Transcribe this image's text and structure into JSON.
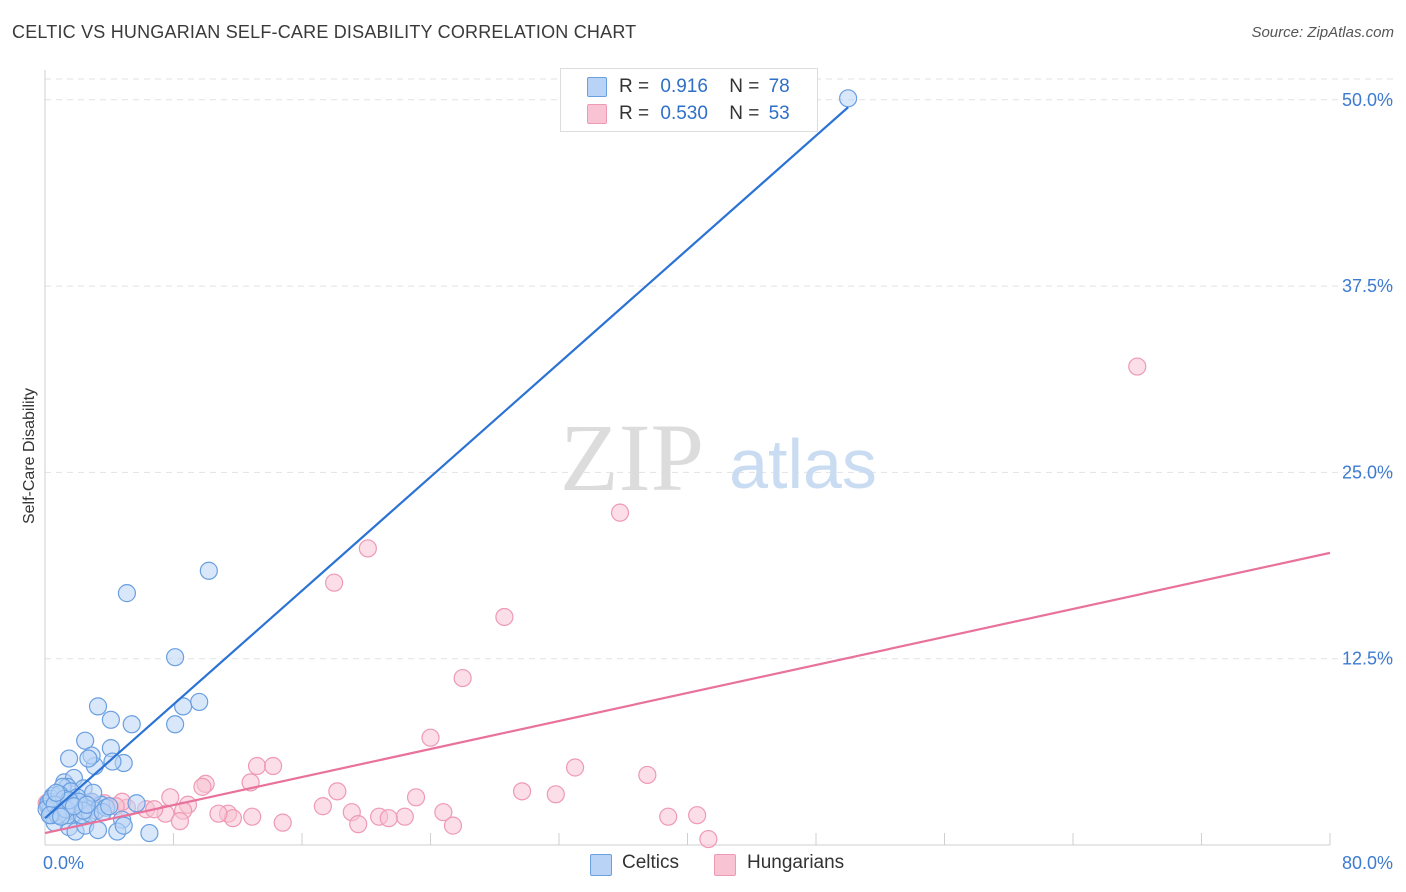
{
  "title": "CELTIC VS HUNGARIAN SELF-CARE DISABILITY CORRELATION CHART",
  "source": "Source: ZipAtlas.com",
  "watermark": {
    "zip": "ZIP",
    "atlas": "atlas"
  },
  "legend": {
    "rows": [
      {
        "r_label": "R =",
        "r_value": "0.916",
        "n_label": "N =",
        "n_value": "78"
      },
      {
        "r_label": "R =",
        "r_value": "0.530",
        "n_label": "N =",
        "n_value": "53"
      }
    ]
  },
  "bottom_legend": {
    "celtics": "Celtics",
    "hungarians": "Hungarians"
  },
  "colors": {
    "celtics_fill": "#b8d3f5",
    "celtics_stroke": "#6a9fe0",
    "celtics_line": "#2a72d4",
    "hungarians_fill": "#f8c3d3",
    "hungarians_stroke": "#ee9ab5",
    "hungarians_line": "#e8729c",
    "tick_label": "#3d7bd0",
    "grid": "#e2e2e2"
  },
  "chart_data": {
    "type": "scatter",
    "title": "CELTIC VS HUNGARIAN SELF-CARE DISABILITY CORRELATION CHART",
    "xlabel": "",
    "ylabel": "Self-Care Disability",
    "xlim": [
      0,
      80
    ],
    "ylim": [
      0,
      52
    ],
    "x_tick_labels": [
      "0.0%",
      "80.0%"
    ],
    "y_ticks": [
      12.5,
      25.0,
      37.5,
      50.0
    ],
    "y_tick_labels": [
      "12.5%",
      "25.0%",
      "37.5%",
      "50.0%"
    ],
    "grid": "horizontal dashed",
    "legend_position": "top-center",
    "series": [
      {
        "name": "Celtics",
        "R": 0.916,
        "N": 78,
        "trend": {
          "x": [
            0,
            50
          ],
          "y": [
            1.8,
            49.5
          ]
        },
        "points": [
          [
            50,
            50.1
          ],
          [
            10.2,
            18.4
          ],
          [
            5.1,
            16.9
          ],
          [
            8.1,
            12.6
          ],
          [
            8.1,
            8.1
          ],
          [
            9.6,
            9.6
          ],
          [
            8.6,
            9.3
          ],
          [
            3.3,
            9.3
          ],
          [
            5.4,
            8.1
          ],
          [
            4.1,
            8.4
          ],
          [
            4.1,
            6.5
          ],
          [
            2.5,
            7.0
          ],
          [
            1.5,
            5.8
          ],
          [
            3.1,
            5.3
          ],
          [
            2.9,
            6.0
          ],
          [
            2.7,
            5.8
          ],
          [
            4.9,
            5.5
          ],
          [
            4.2,
            5.6
          ],
          [
            1.2,
            4.2
          ],
          [
            1.8,
            4.5
          ],
          [
            1.4,
            3.9
          ],
          [
            2.4,
            3.8
          ],
          [
            1.1,
            3.9
          ],
          [
            0.9,
            3.0
          ],
          [
            1.6,
            3.6
          ],
          [
            0.5,
            3.3
          ],
          [
            0.3,
            2.9
          ],
          [
            0.2,
            2.6
          ],
          [
            0.3,
            2.3
          ],
          [
            0.5,
            2.1
          ],
          [
            0.8,
            2.5
          ],
          [
            1.0,
            2.2
          ],
          [
            1.3,
            2.8
          ],
          [
            1.6,
            2.4
          ],
          [
            1.9,
            2.1
          ],
          [
            2.2,
            2.6
          ],
          [
            2.6,
            2.4
          ],
          [
            2.9,
            2.9
          ],
          [
            3.2,
            2.3
          ],
          [
            3.5,
            2.7
          ],
          [
            3.8,
            2.5
          ],
          [
            5.7,
            2.8
          ],
          [
            4.8,
            1.7
          ],
          [
            1.5,
            1.2
          ],
          [
            1.9,
            0.9
          ],
          [
            2.5,
            1.3
          ],
          [
            3.3,
            1.0
          ],
          [
            4.5,
            0.9
          ],
          [
            4.9,
            1.3
          ],
          [
            6.5,
            0.8
          ],
          [
            0.6,
            1.5
          ],
          [
            0.4,
            2.0
          ],
          [
            0.7,
            2.9
          ],
          [
            1.1,
            2.6
          ],
          [
            1.4,
            2.0
          ],
          [
            2.0,
            3.2
          ],
          [
            2.3,
            2.0
          ],
          [
            2.8,
            2.1
          ],
          [
            3.0,
            3.5
          ],
          [
            0.2,
            2.8
          ],
          [
            0.1,
            2.4
          ],
          [
            0.4,
            3.1
          ],
          [
            0.9,
            3.4
          ],
          [
            1.2,
            3.1
          ],
          [
            1.7,
            2.7
          ],
          [
            2.1,
            2.9
          ],
          [
            2.4,
            2.3
          ],
          [
            0.6,
            2.7
          ],
          [
            0.8,
            2.0
          ],
          [
            1.3,
            2.4
          ],
          [
            1.5,
            3.0
          ],
          [
            1.8,
            2.6
          ],
          [
            2.6,
            2.7
          ],
          [
            3.6,
            2.2
          ],
          [
            4.0,
            2.6
          ],
          [
            0.3,
            2.0
          ],
          [
            1.0,
            1.9
          ],
          [
            0.7,
            3.5
          ]
        ]
      },
      {
        "name": "Hungarians",
        "R": 0.53,
        "N": 53,
        "trend": {
          "x": [
            0,
            80
          ],
          "y": [
            0.8,
            19.6
          ]
        },
        "points": [
          [
            68,
            32.1
          ],
          [
            35.8,
            22.3
          ],
          [
            20.1,
            19.9
          ],
          [
            18.0,
            17.6
          ],
          [
            28.6,
            15.3
          ],
          [
            26.0,
            11.2
          ],
          [
            24.0,
            7.2
          ],
          [
            33.0,
            5.2
          ],
          [
            37.5,
            4.7
          ],
          [
            12.8,
            4.2
          ],
          [
            13.2,
            5.3
          ],
          [
            14.2,
            5.3
          ],
          [
            10.0,
            4.1
          ],
          [
            9.8,
            3.9
          ],
          [
            18.2,
            3.6
          ],
          [
            23.1,
            3.2
          ],
          [
            29.7,
            3.6
          ],
          [
            31.8,
            3.4
          ],
          [
            17.3,
            2.6
          ],
          [
            19.1,
            2.2
          ],
          [
            22.4,
            1.9
          ],
          [
            24.8,
            2.2
          ],
          [
            20.8,
            1.9
          ],
          [
            21.4,
            1.8
          ],
          [
            11.4,
            2.1
          ],
          [
            11.7,
            1.8
          ],
          [
            12.9,
            1.9
          ],
          [
            14.8,
            1.5
          ],
          [
            19.5,
            1.4
          ],
          [
            25.4,
            1.3
          ],
          [
            38.8,
            1.9
          ],
          [
            40.6,
            2.0
          ],
          [
            41.3,
            0.4
          ],
          [
            8.9,
            2.7
          ],
          [
            7.8,
            3.2
          ],
          [
            8.6,
            2.3
          ],
          [
            7.5,
            2.1
          ],
          [
            6.3,
            2.4
          ],
          [
            5.1,
            2.5
          ],
          [
            4.8,
            2.9
          ],
          [
            4.4,
            2.6
          ],
          [
            3.7,
            2.8
          ],
          [
            3.3,
            2.4
          ],
          [
            2.8,
            2.8
          ],
          [
            2.1,
            2.5
          ],
          [
            1.6,
            2.4
          ],
          [
            1.0,
            2.7
          ],
          [
            0.6,
            2.6
          ],
          [
            0.3,
            2.5
          ],
          [
            0.1,
            2.8
          ],
          [
            8.4,
            1.6
          ],
          [
            10.8,
            2.1
          ],
          [
            6.8,
            2.4
          ]
        ]
      }
    ]
  }
}
